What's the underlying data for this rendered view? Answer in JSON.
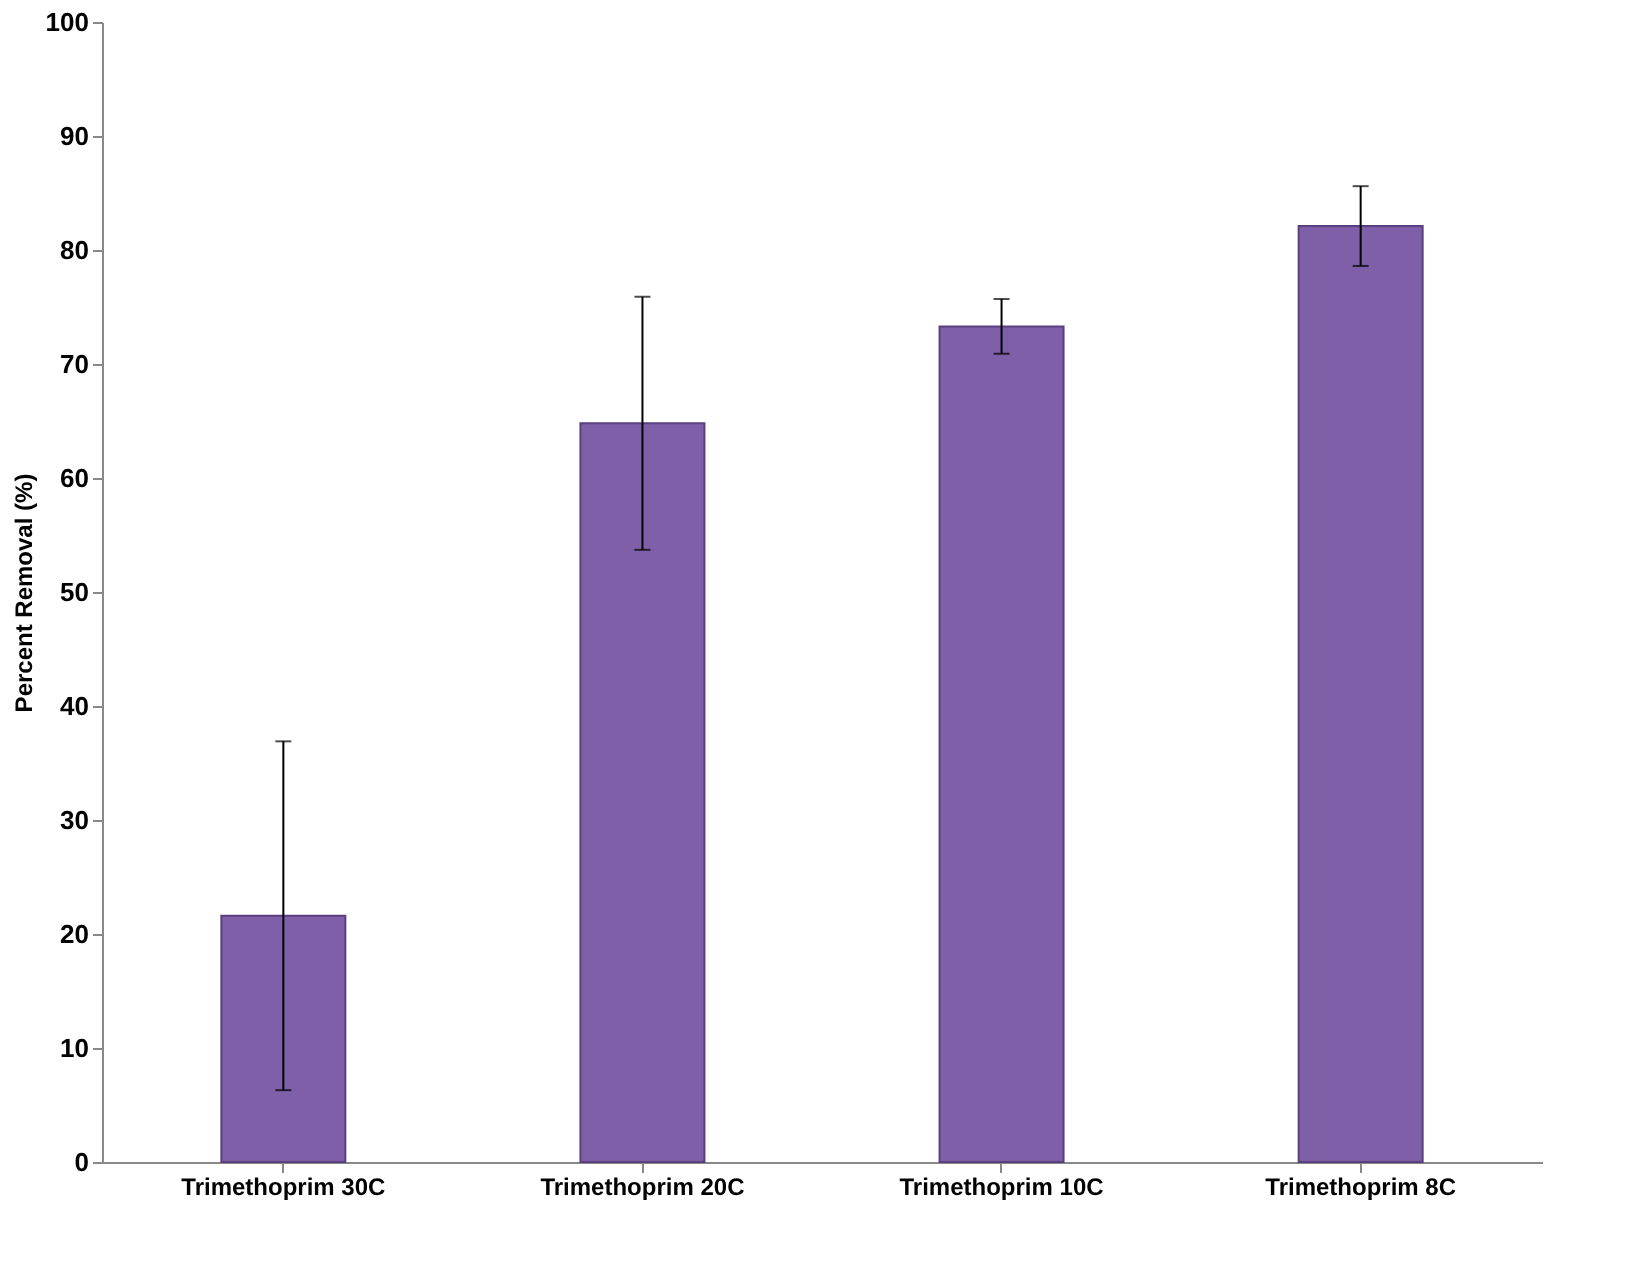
{
  "chart_data": {
    "type": "bar",
    "ylabel": "Percent Removal (%)",
    "categories": [
      "Trimethoprim 30C",
      "Trimethoprim 20C",
      "Trimethoprim 10C",
      "Trimethoprim 8C"
    ],
    "values": [
      21.6,
      64.8,
      73.3,
      82.1
    ],
    "errors": [
      15.3,
      11.1,
      2.4,
      3.5
    ],
    "color": "#7f5fa8",
    "ylim": [
      0,
      100
    ],
    "yticks": [
      0,
      10,
      20,
      30,
      40,
      50,
      60,
      70,
      80,
      90,
      100
    ],
    "grid": false
  }
}
